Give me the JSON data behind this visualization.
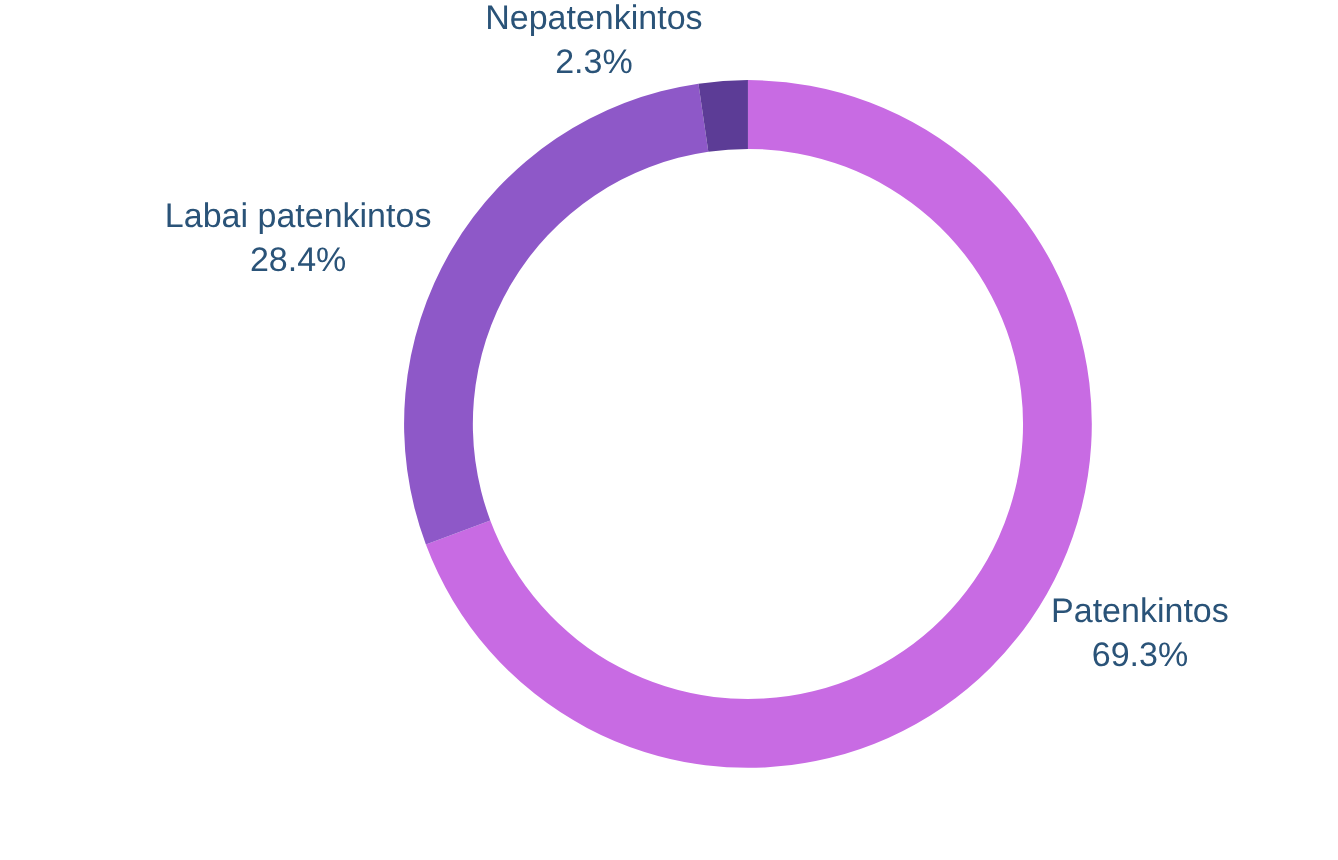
{
  "chart_data": {
    "type": "donut",
    "categories": [
      "Patenkintos",
      "Labai patenkintos",
      "Nepatenkintos"
    ],
    "values": [
      69.3,
      28.4,
      2.3
    ],
    "value_labels": [
      "69.3%",
      "28.4%",
      "2.3%"
    ],
    "colors": [
      "#c86be3",
      "#8e58c8",
      "#5c3c96"
    ],
    "legend": false
  }
}
